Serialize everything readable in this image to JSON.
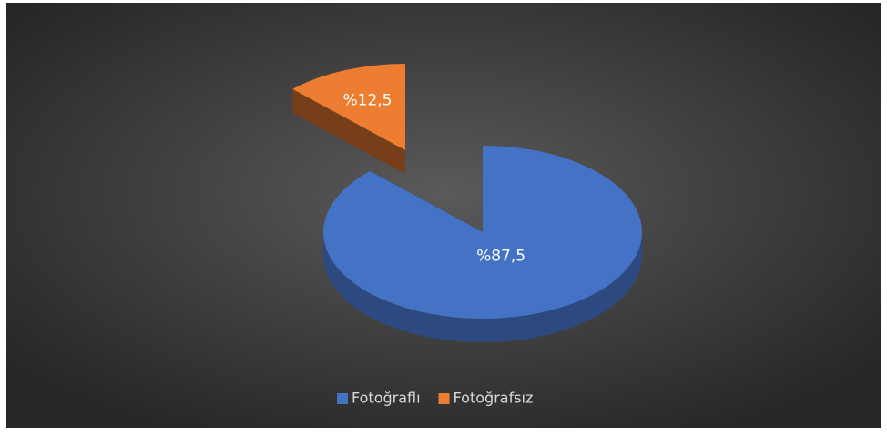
{
  "chart_data": {
    "type": "pie",
    "categories": [
      "Fotoğraflı",
      "Fotoğrafsız"
    ],
    "values": [
      87.5,
      12.5
    ],
    "value_labels": [
      "%87,5",
      "%12,5"
    ],
    "colors": [
      "#4472c4",
      "#ed7d31"
    ],
    "legend": "bottom"
  }
}
